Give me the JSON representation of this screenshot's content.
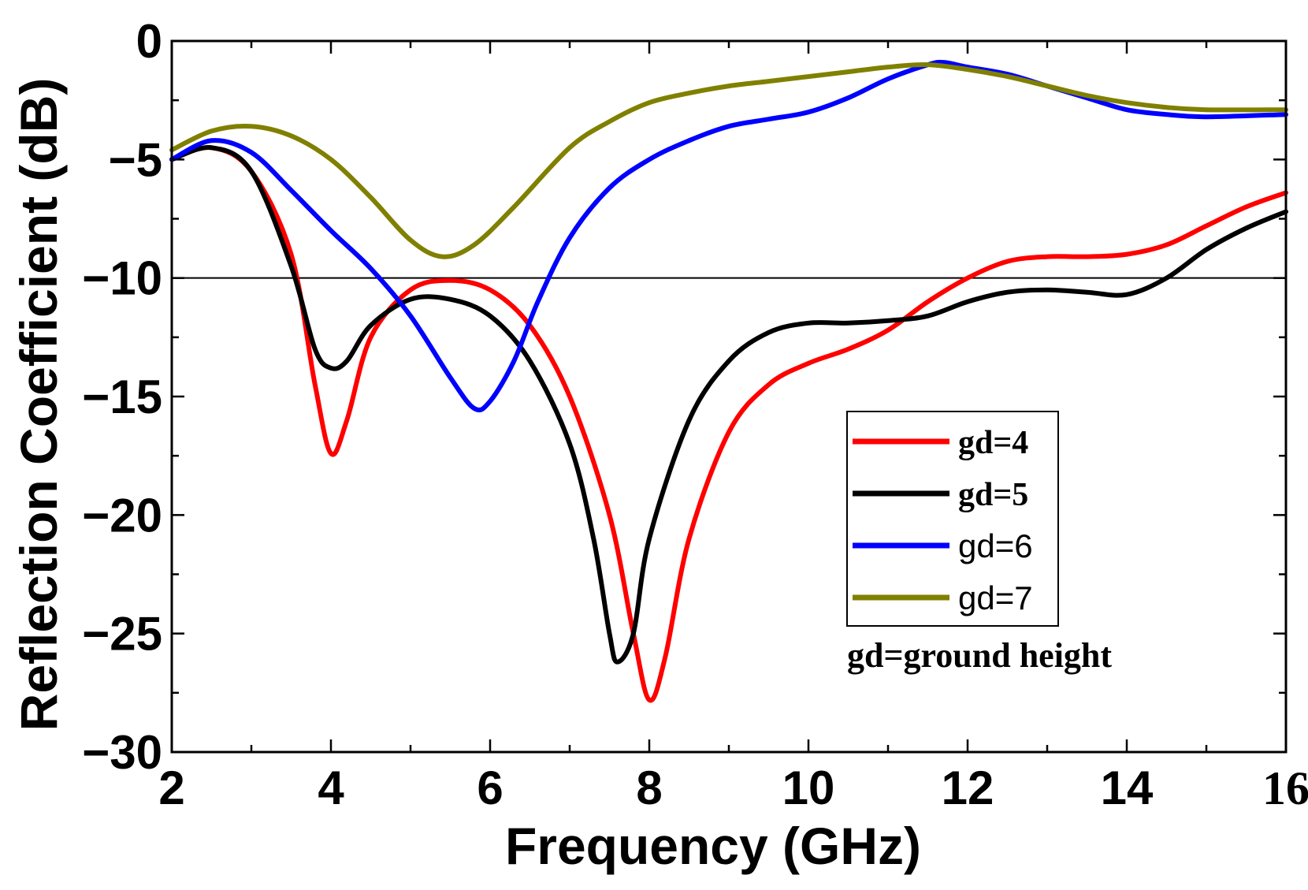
{
  "chart_data": {
    "type": "line",
    "title": "",
    "xlabel": "Frequency (GHz)",
    "ylabel": "Reflection Coefficient (dB)",
    "xlim": [
      2,
      16
    ],
    "ylim": [
      -30,
      0
    ],
    "x_ticks": [
      2,
      4,
      6,
      8,
      10,
      12,
      14,
      16
    ],
    "x_tick_labels": [
      "2",
      "4",
      "6",
      "8",
      "10",
      "12",
      "14",
      "16"
    ],
    "y_ticks": [
      0,
      -5,
      -10,
      -15,
      -20,
      -25,
      -30
    ],
    "y_tick_labels": [
      "0",
      "-5",
      "-10",
      "-15",
      "-20",
      "-25",
      "-30"
    ],
    "reference_line": {
      "y": -10
    },
    "legend_position": "right-middle",
    "annotation": "gd=ground height",
    "series": [
      {
        "name": "gd=4",
        "color": "#ff0000",
        "points": [
          [
            2,
            -5
          ],
          [
            2.5,
            -4.5
          ],
          [
            3,
            -5.5
          ],
          [
            3.5,
            -9
          ],
          [
            3.8,
            -14.5
          ],
          [
            4,
            -17.4
          ],
          [
            4.2,
            -16
          ],
          [
            4.5,
            -12.5
          ],
          [
            5,
            -10.5
          ],
          [
            5.5,
            -10.1
          ],
          [
            6,
            -10.5
          ],
          [
            6.5,
            -12
          ],
          [
            7,
            -15
          ],
          [
            7.5,
            -20
          ],
          [
            7.8,
            -25
          ],
          [
            8,
            -27.8
          ],
          [
            8.2,
            -26
          ],
          [
            8.5,
            -21
          ],
          [
            9,
            -16.5
          ],
          [
            9.5,
            -14.5
          ],
          [
            10,
            -13.6
          ],
          [
            10.5,
            -13
          ],
          [
            11,
            -12.2
          ],
          [
            11.5,
            -11
          ],
          [
            12,
            -10
          ],
          [
            12.5,
            -9.3
          ],
          [
            13,
            -9.1
          ],
          [
            13.5,
            -9.1
          ],
          [
            14,
            -9
          ],
          [
            14.5,
            -8.6
          ],
          [
            15,
            -7.8
          ],
          [
            15.5,
            -7
          ],
          [
            16,
            -6.4
          ]
        ]
      },
      {
        "name": "gd=5",
        "color": "#000000",
        "points": [
          [
            2,
            -5
          ],
          [
            2.5,
            -4.5
          ],
          [
            3,
            -5.5
          ],
          [
            3.5,
            -9.5
          ],
          [
            3.8,
            -13
          ],
          [
            4,
            -13.8
          ],
          [
            4.2,
            -13.5
          ],
          [
            4.5,
            -12
          ],
          [
            5,
            -10.9
          ],
          [
            5.5,
            -10.9
          ],
          [
            6,
            -11.6
          ],
          [
            6.5,
            -13.5
          ],
          [
            7,
            -17
          ],
          [
            7.3,
            -21
          ],
          [
            7.5,
            -25
          ],
          [
            7.6,
            -26.2
          ],
          [
            7.8,
            -25
          ],
          [
            8,
            -21
          ],
          [
            8.5,
            -16
          ],
          [
            9,
            -13.5
          ],
          [
            9.5,
            -12.3
          ],
          [
            10,
            -11.9
          ],
          [
            10.5,
            -11.9
          ],
          [
            11,
            -11.8
          ],
          [
            11.5,
            -11.6
          ],
          [
            12,
            -11
          ],
          [
            12.5,
            -10.6
          ],
          [
            13,
            -10.5
          ],
          [
            13.5,
            -10.6
          ],
          [
            14,
            -10.7
          ],
          [
            14.5,
            -10
          ],
          [
            15,
            -8.8
          ],
          [
            15.5,
            -7.9
          ],
          [
            16,
            -7.2
          ]
        ]
      },
      {
        "name": "gd=6",
        "color": "#0000ff",
        "points": [
          [
            2,
            -5
          ],
          [
            2.5,
            -4.2
          ],
          [
            3,
            -4.7
          ],
          [
            3.5,
            -6.3
          ],
          [
            4,
            -8
          ],
          [
            4.5,
            -9.6
          ],
          [
            5,
            -11.6
          ],
          [
            5.5,
            -14.2
          ],
          [
            5.8,
            -15.5
          ],
          [
            6,
            -15.2
          ],
          [
            6.3,
            -13.5
          ],
          [
            6.6,
            -11
          ],
          [
            7,
            -8.3
          ],
          [
            7.5,
            -6.2
          ],
          [
            8,
            -5
          ],
          [
            8.5,
            -4.2
          ],
          [
            9,
            -3.6
          ],
          [
            9.5,
            -3.3
          ],
          [
            10,
            -3
          ],
          [
            10.5,
            -2.4
          ],
          [
            11,
            -1.6
          ],
          [
            11.5,
            -1
          ],
          [
            11.7,
            -0.9
          ],
          [
            12,
            -1.1
          ],
          [
            12.5,
            -1.4
          ],
          [
            13,
            -1.9
          ],
          [
            13.5,
            -2.4
          ],
          [
            14,
            -2.9
          ],
          [
            14.5,
            -3.1
          ],
          [
            15,
            -3.2
          ],
          [
            16,
            -3.1
          ]
        ]
      },
      {
        "name": "gd=7",
        "color": "#808000",
        "points": [
          [
            2,
            -4.6
          ],
          [
            2.5,
            -3.8
          ],
          [
            3,
            -3.6
          ],
          [
            3.5,
            -4
          ],
          [
            4,
            -5
          ],
          [
            4.5,
            -6.6
          ],
          [
            5,
            -8.4
          ],
          [
            5.4,
            -9.1
          ],
          [
            5.8,
            -8.6
          ],
          [
            6.3,
            -7
          ],
          [
            7,
            -4.5
          ],
          [
            7.5,
            -3.4
          ],
          [
            8,
            -2.6
          ],
          [
            8.5,
            -2.2
          ],
          [
            9,
            -1.9
          ],
          [
            9.5,
            -1.7
          ],
          [
            10,
            -1.5
          ],
          [
            10.5,
            -1.3
          ],
          [
            11,
            -1.1
          ],
          [
            11.5,
            -1
          ],
          [
            12,
            -1.2
          ],
          [
            12.5,
            -1.5
          ],
          [
            13,
            -1.9
          ],
          [
            13.5,
            -2.3
          ],
          [
            14,
            -2.6
          ],
          [
            14.5,
            -2.8
          ],
          [
            15,
            -2.9
          ],
          [
            16,
            -2.9
          ]
        ]
      }
    ]
  }
}
